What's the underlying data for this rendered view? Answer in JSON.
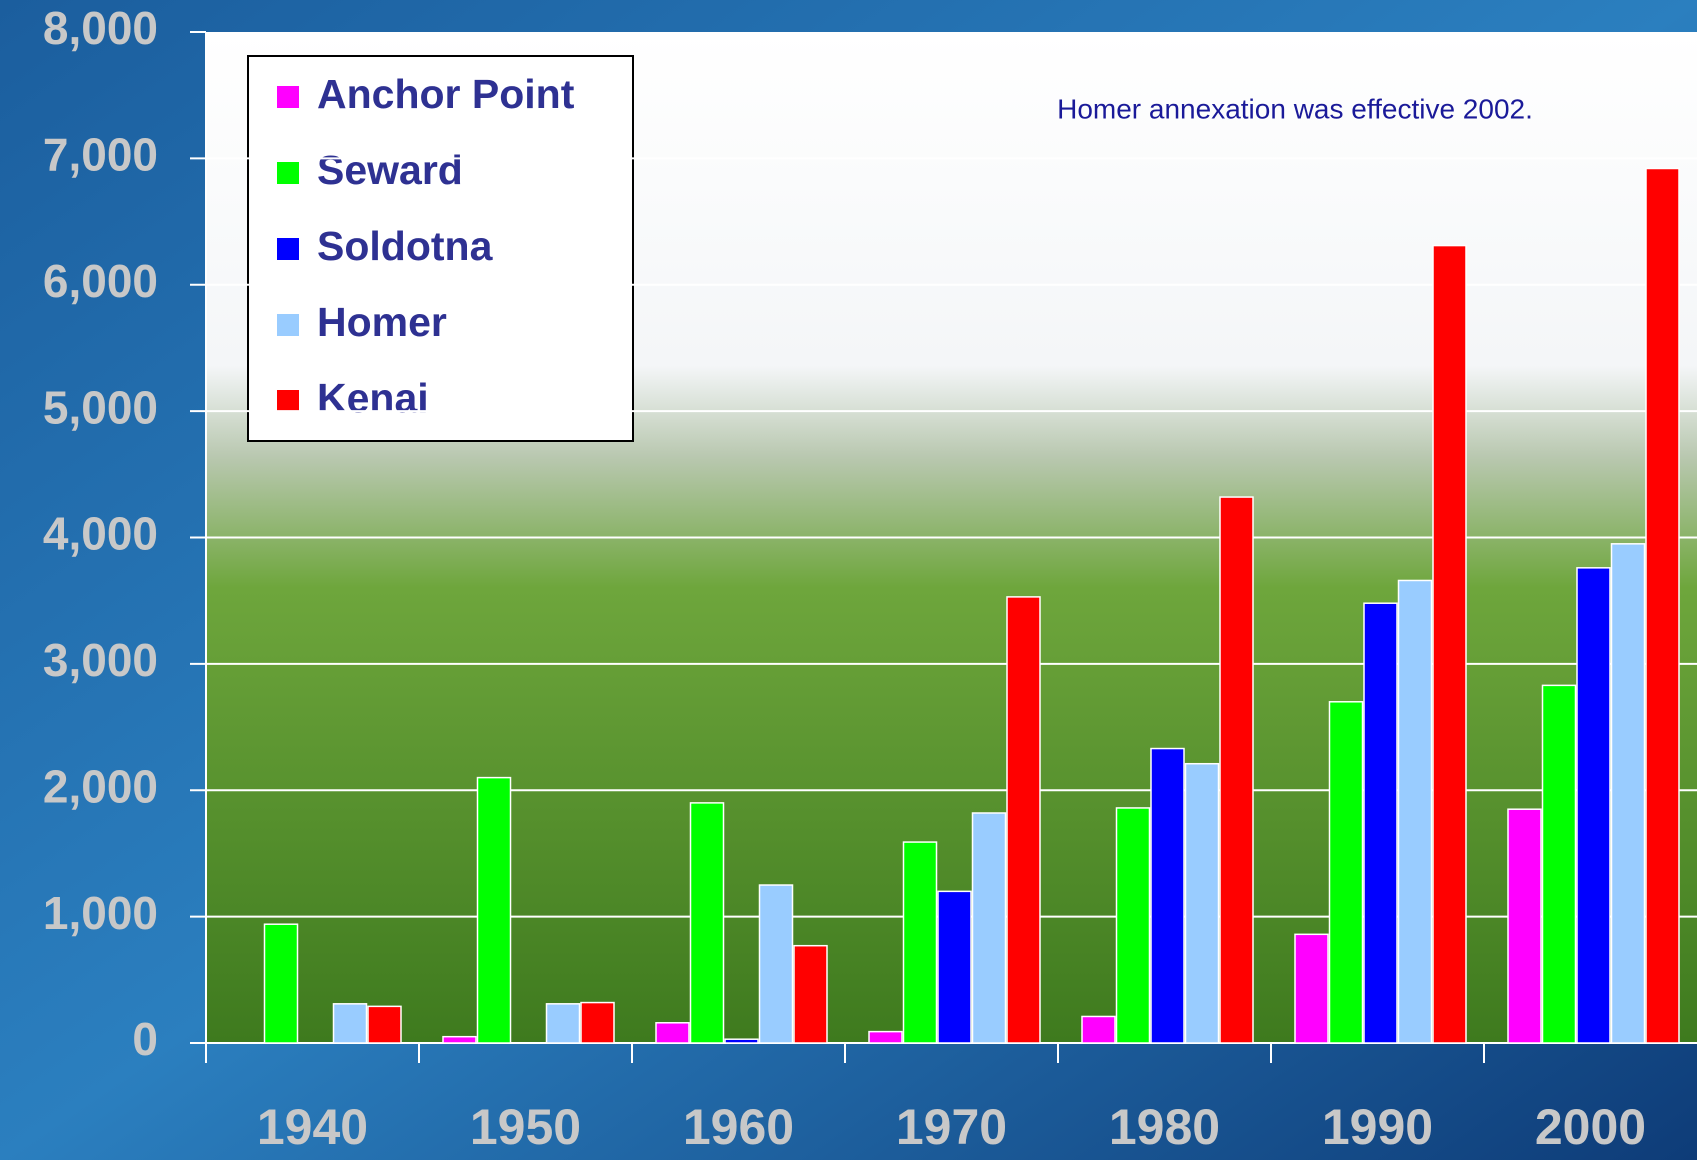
{
  "chart_data": {
    "type": "bar",
    "annotation": "Homer annexation was effective 2002.",
    "categories": [
      "1940",
      "1950",
      "1960",
      "1970",
      "1980",
      "1990",
      "2000"
    ],
    "series": [
      {
        "name": "Anchor Point",
        "color": "#ff00ff",
        "values": [
          null,
          50,
          160,
          90,
          210,
          860,
          1850
        ]
      },
      {
        "name": "Seward",
        "color": "#00ff00",
        "values": [
          940,
          2100,
          1900,
          1590,
          1860,
          2700,
          2830
        ]
      },
      {
        "name": "Soldotna",
        "color": "#0000ff",
        "values": [
          null,
          null,
          30,
          1200,
          2330,
          3480,
          3760
        ]
      },
      {
        "name": "Homer",
        "color": "#99ccff",
        "values": [
          310,
          310,
          1250,
          1820,
          2210,
          3660,
          3950
        ]
      },
      {
        "name": "Kenai",
        "color": "#ff0000",
        "values": [
          290,
          320,
          770,
          3530,
          4320,
          6310,
          6920
        ]
      }
    ],
    "ylim": [
      0,
      8000
    ],
    "yticks": [
      {
        "value": 0,
        "label": "0"
      },
      {
        "value": 1000,
        "label": "1,000"
      },
      {
        "value": 2000,
        "label": "2,000"
      },
      {
        "value": 3000,
        "label": "3,000"
      },
      {
        "value": 4000,
        "label": "4,000"
      },
      {
        "value": 5000,
        "label": "5,000"
      },
      {
        "value": 6000,
        "label": "6,000"
      },
      {
        "value": 7000,
        "label": "7,000"
      },
      {
        "value": 8000,
        "label": "8,000"
      }
    ],
    "grid": true,
    "legend": "top-left"
  }
}
